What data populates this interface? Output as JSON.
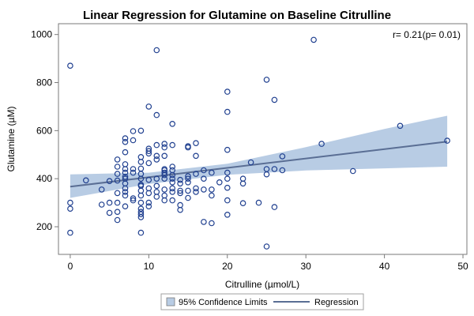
{
  "chart_data": {
    "type": "scatter",
    "title": "Linear Regression for Glutamine on Baseline Citrulline",
    "xlabel": "Citrulline (µmol/L)",
    "ylabel": "Glutamine (µM)",
    "xlim": [
      -1.5,
      50.5
    ],
    "ylim": [
      85,
      1045
    ],
    "x_ticks": [
      0,
      10,
      20,
      30,
      40,
      50
    ],
    "y_ticks": [
      200,
      400,
      600,
      800,
      1000
    ],
    "grid": false,
    "annotation": "r= 0.21(p= 0.01)",
    "regression": {
      "intercept": 367,
      "slope": 3.9,
      "x_range": [
        0,
        48
      ]
    },
    "confidence_band": {
      "x": [
        0,
        10,
        20,
        30,
        40,
        48
      ],
      "lower": [
        320,
        378,
        416,
        434,
        443,
        450
      ],
      "upper": [
        418,
        425,
        462,
        531,
        607,
        662
      ]
    },
    "legend": {
      "position": "bottom-center",
      "items": [
        {
          "label": "95% Confidence Limits",
          "kind": "band"
        },
        {
          "label": "Regression",
          "kind": "line"
        }
      ]
    },
    "colors": {
      "points": "#1f3f8f",
      "band": "#b8cce4",
      "regression_line": "#5a6e94",
      "axis": "#7a7a7a"
    },
    "series": [
      {
        "kind": "points",
        "points": [
          [
            0,
            870
          ],
          [
            0,
            300
          ],
          [
            0,
            275
          ],
          [
            0,
            175
          ],
          [
            2,
            393
          ],
          [
            4,
            355
          ],
          [
            4,
            292
          ],
          [
            5,
            390
          ],
          [
            5,
            300
          ],
          [
            5,
            258
          ],
          [
            6,
            480
          ],
          [
            6,
            450
          ],
          [
            6,
            420
          ],
          [
            6,
            392
          ],
          [
            6,
            340
          ],
          [
            6,
            300
          ],
          [
            6,
            262
          ],
          [
            6,
            228
          ],
          [
            7,
            568
          ],
          [
            7,
            553
          ],
          [
            7,
            510
          ],
          [
            7,
            460
          ],
          [
            7,
            440
          ],
          [
            7,
            425
          ],
          [
            7,
            408
          ],
          [
            7,
            400
          ],
          [
            7,
            380
          ],
          [
            7,
            360
          ],
          [
            7,
            345
          ],
          [
            7,
            330
          ],
          [
            7,
            285
          ],
          [
            8,
            598
          ],
          [
            8,
            560
          ],
          [
            8,
            440
          ],
          [
            8,
            425
          ],
          [
            8,
            318
          ],
          [
            8,
            310
          ],
          [
            9,
            600
          ],
          [
            9,
            490
          ],
          [
            9,
            470
          ],
          [
            9,
            442
          ],
          [
            9,
            420
          ],
          [
            9,
            400
          ],
          [
            9,
            375
          ],
          [
            9,
            370
          ],
          [
            9,
            350
          ],
          [
            9,
            330
          ],
          [
            9,
            300
          ],
          [
            9,
            275
          ],
          [
            9,
            262
          ],
          [
            9,
            252
          ],
          [
            9,
            240
          ],
          [
            9,
            175
          ],
          [
            10,
            700
          ],
          [
            10,
            525
          ],
          [
            10,
            515
          ],
          [
            10,
            505
          ],
          [
            10,
            465
          ],
          [
            10,
            395
          ],
          [
            10,
            360
          ],
          [
            10,
            340
          ],
          [
            10,
            300
          ],
          [
            10,
            285
          ],
          [
            11,
            935
          ],
          [
            11,
            665
          ],
          [
            11,
            540
          ],
          [
            11,
            495
          ],
          [
            11,
            480
          ],
          [
            11,
            400
          ],
          [
            11,
            370
          ],
          [
            11,
            345
          ],
          [
            11,
            325
          ],
          [
            12,
            545
          ],
          [
            12,
            530
          ],
          [
            12,
            495
          ],
          [
            12,
            440
          ],
          [
            12,
            435
          ],
          [
            12,
            425
          ],
          [
            12,
            415
          ],
          [
            12,
            400
          ],
          [
            12,
            355
          ],
          [
            12,
            330
          ],
          [
            12,
            310
          ],
          [
            13,
            628
          ],
          [
            13,
            540
          ],
          [
            13,
            450
          ],
          [
            13,
            435
          ],
          [
            13,
            415
          ],
          [
            13,
            400
          ],
          [
            13,
            385
          ],
          [
            13,
            360
          ],
          [
            13,
            345
          ],
          [
            13,
            310
          ],
          [
            14,
            395
          ],
          [
            14,
            380
          ],
          [
            14,
            350
          ],
          [
            14,
            340
          ],
          [
            14,
            290
          ],
          [
            14,
            270
          ],
          [
            15,
            535
          ],
          [
            15,
            530
          ],
          [
            15,
            410
          ],
          [
            15,
            400
          ],
          [
            15,
            385
          ],
          [
            15,
            350
          ],
          [
            15,
            320
          ],
          [
            16,
            548
          ],
          [
            16,
            495
          ],
          [
            16,
            420
          ],
          [
            16,
            360
          ],
          [
            16,
            345
          ],
          [
            17,
            435
          ],
          [
            17,
            400
          ],
          [
            17,
            355
          ],
          [
            17,
            220
          ],
          [
            18,
            425
          ],
          [
            18,
            355
          ],
          [
            18,
            330
          ],
          [
            18,
            215
          ],
          [
            19,
            385
          ],
          [
            20,
            762
          ],
          [
            20,
            678
          ],
          [
            20,
            520
          ],
          [
            20,
            425
          ],
          [
            20,
            400
          ],
          [
            20,
            362
          ],
          [
            20,
            310
          ],
          [
            20,
            250
          ],
          [
            22,
            400
          ],
          [
            22,
            380
          ],
          [
            22,
            298
          ],
          [
            23,
            468
          ],
          [
            24,
            300
          ],
          [
            25,
            812
          ],
          [
            25,
            440
          ],
          [
            25,
            418
          ],
          [
            25,
            118
          ],
          [
            26,
            728
          ],
          [
            26,
            440
          ],
          [
            26,
            282
          ],
          [
            27,
            493
          ],
          [
            27,
            435
          ],
          [
            31,
            978
          ],
          [
            32,
            545
          ],
          [
            36,
            432
          ],
          [
            42,
            620
          ],
          [
            48,
            558
          ]
        ]
      }
    ]
  }
}
